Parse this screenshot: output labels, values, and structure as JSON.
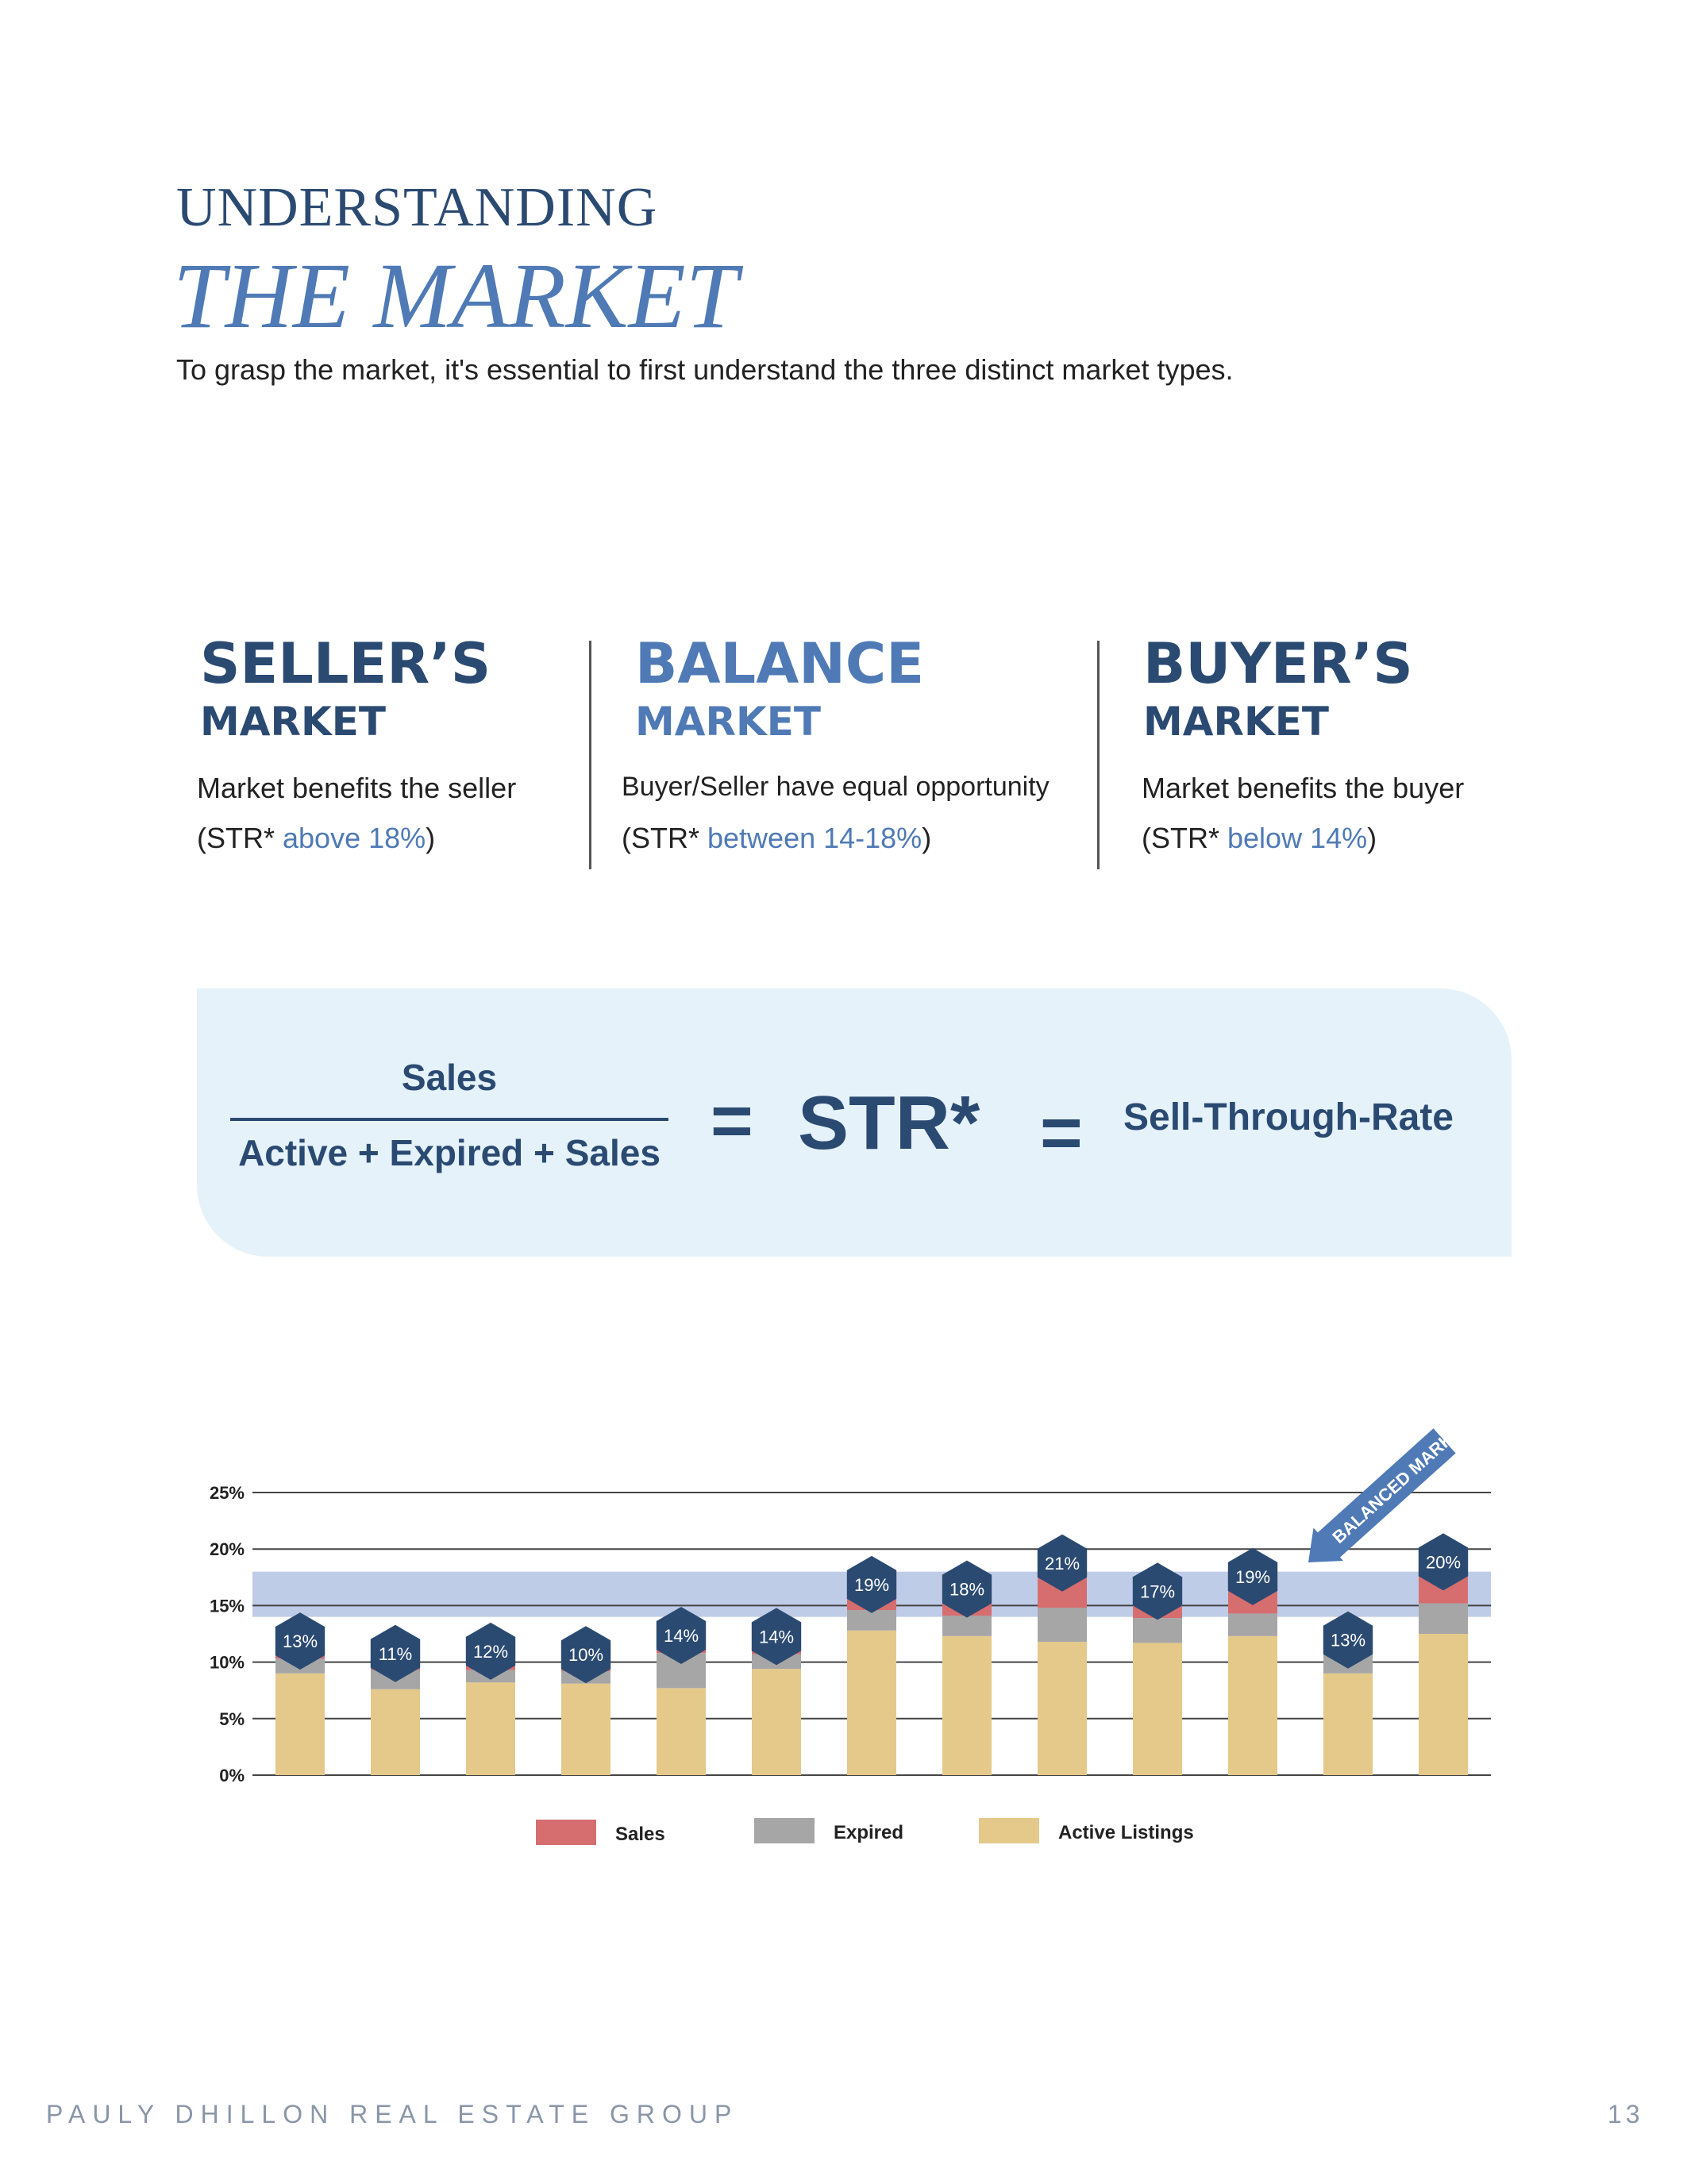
{
  "header": {
    "kicker": "UNDERSTANDING",
    "title": "THE MARKET",
    "intro": "To grasp the market, it's essential to first understand the three distinct market types."
  },
  "market_types": [
    {
      "title": "SELLER’S",
      "subtitle": "MARKET",
      "description": "Market benefits the seller",
      "str_prefix": "(STR* ",
      "str_range": "above 18%",
      "str_suffix": ")"
    },
    {
      "title": "BALANCE",
      "subtitle": "MARKET",
      "description": "Buyer/Seller have equal opportunity",
      "str_prefix": "(STR* ",
      "str_range": "between 14-18%",
      "str_suffix": ")"
    },
    {
      "title": "BUYER’S",
      "subtitle": "MARKET",
      "description": "Market benefits the buyer",
      "str_prefix": "(STR* ",
      "str_range": "below 14%",
      "str_suffix": ")"
    }
  ],
  "formula": {
    "numerator": "Sales",
    "denominator": "Active + Expired + Sales",
    "equals": "=",
    "result": "STR*",
    "definition": "Sell-Through-Rate"
  },
  "chart_data": {
    "type": "bar",
    "stacked": true,
    "y_ticks": [
      "0%",
      "5%",
      "10%",
      "15%",
      "20%",
      "25%"
    ],
    "ylim": [
      0,
      25
    ],
    "balanced_band": [
      14,
      18
    ],
    "annotation": "BALANCED MARKET",
    "series": [
      {
        "name": "Active Listings",
        "color": "#e4c98b",
        "values": [
          9.0,
          7.6,
          8.2,
          8.1,
          7.7,
          9.4,
          12.8,
          12.3,
          11.8,
          11.7,
          12.3,
          9.0,
          12.5
        ]
      },
      {
        "name": "Expired",
        "color": "#a6a6a6",
        "values": [
          1.3,
          1.7,
          1.1,
          1.1,
          3.1,
          1.3,
          1.8,
          1.8,
          3.0,
          2.2,
          2.0,
          1.7,
          2.7
        ]
      },
      {
        "name": "Sales",
        "color": "#d66e6f",
        "values": [
          1.0,
          0.9,
          1.1,
          0.9,
          1.0,
          1.0,
          1.7,
          1.8,
          3.4,
          1.8,
          2.7,
          0.7,
          3.1
        ]
      }
    ],
    "labels": [
      "13%",
      "11%",
      "12%",
      "10%",
      "14%",
      "14%",
      "19%",
      "18%",
      "21%",
      "17%",
      "19%",
      "13%",
      "20%"
    ],
    "legend": [
      "Sales",
      "Expired",
      "Active Listings"
    ],
    "grid": true,
    "legend_position": "bottom"
  },
  "footer": {
    "brand": "PAULY DHILLON REAL ESTATE GROUP",
    "page": "13"
  }
}
